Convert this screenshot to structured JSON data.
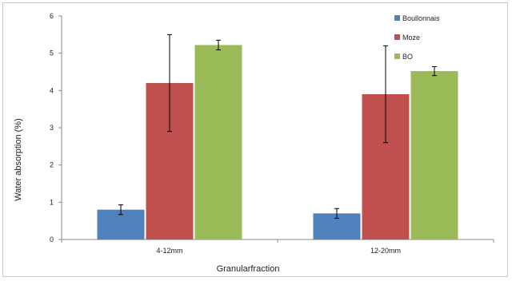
{
  "chart_data": {
    "type": "bar",
    "categories": [
      "4-12mm",
      "12-20mm"
    ],
    "series": [
      {
        "name": "Boullonnais",
        "values": [
          0.8,
          0.7
        ],
        "err": [
          0.13,
          0.13
        ],
        "color": "#4f81bd"
      },
      {
        "name": "Moze",
        "values": [
          4.2,
          3.9
        ],
        "err": [
          1.3,
          1.3
        ],
        "color": "#c0504d"
      },
      {
        "name": "BO",
        "values": [
          5.22,
          4.52
        ],
        "err": [
          0.13,
          0.12
        ],
        "color": "#9bbb59"
      }
    ],
    "xlabel": "Granularfraction",
    "ylabel": "Water absorption (%)",
    "ylim": [
      0,
      6
    ],
    "yticks": [
      "0",
      "1",
      "2",
      "3",
      "4",
      "5",
      "6"
    ],
    "grid": false,
    "legend_position": "top-right"
  }
}
